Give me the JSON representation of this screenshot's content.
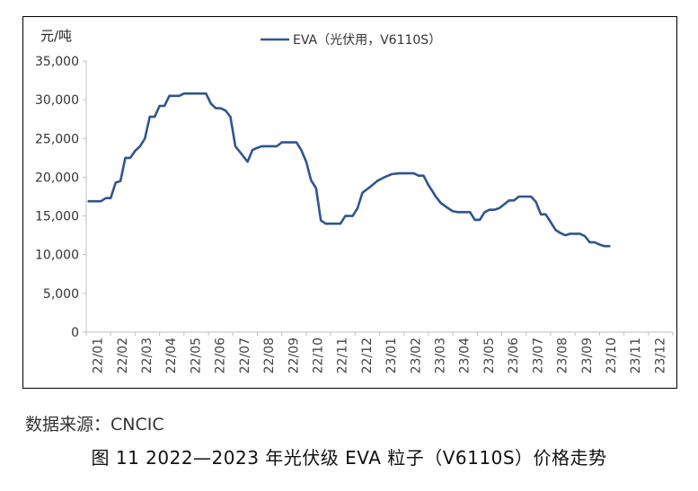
{
  "chart_data": {
    "type": "line",
    "ylabel": "元/吨",
    "ylim": [
      0,
      35000
    ],
    "yticks": [
      "0",
      "5,000",
      "10,000",
      "15,000",
      "20,000",
      "25,000",
      "30,000",
      "35,000"
    ],
    "x_ticks": [
      "22/01",
      "22/02",
      "22/03",
      "22/04",
      "22/05",
      "22/06",
      "22/07",
      "22/08",
      "22/09",
      "22/10",
      "22/11",
      "22/12",
      "23/01",
      "23/02",
      "23/03",
      "23/04",
      "23/05",
      "23/06",
      "23/07",
      "23/08",
      "23/09",
      "23/10",
      "23/11",
      "23/12"
    ],
    "legend_position": "top-center",
    "grid": false,
    "series": [
      {
        "name": "EVA（光伏用，V6110S）",
        "color": "#2e5591",
        "points": [
          [
            0.1,
            16900
          ],
          [
            0.4,
            16900
          ],
          [
            0.6,
            16900
          ],
          [
            0.8,
            17300
          ],
          [
            1.0,
            17300
          ],
          [
            1.2,
            19300
          ],
          [
            1.4,
            19500
          ],
          [
            1.6,
            22500
          ],
          [
            1.8,
            22500
          ],
          [
            2.0,
            23400
          ],
          [
            2.2,
            24000
          ],
          [
            2.4,
            25000
          ],
          [
            2.6,
            27800
          ],
          [
            2.8,
            27800
          ],
          [
            3.0,
            29200
          ],
          [
            3.2,
            29200
          ],
          [
            3.4,
            30500
          ],
          [
            3.6,
            30500
          ],
          [
            3.8,
            30500
          ],
          [
            4.0,
            30800
          ],
          [
            4.3,
            30800
          ],
          [
            4.6,
            30800
          ],
          [
            4.9,
            30800
          ],
          [
            5.1,
            29500
          ],
          [
            5.3,
            28900
          ],
          [
            5.5,
            28900
          ],
          [
            5.7,
            28600
          ],
          [
            5.9,
            27800
          ],
          [
            6.1,
            24000
          ],
          [
            6.35,
            23000
          ],
          [
            6.6,
            22000
          ],
          [
            6.8,
            23500
          ],
          [
            7.0,
            23800
          ],
          [
            7.2,
            24000
          ],
          [
            7.5,
            24000
          ],
          [
            7.8,
            24000
          ],
          [
            8.0,
            24500
          ],
          [
            8.3,
            24500
          ],
          [
            8.6,
            24500
          ],
          [
            8.8,
            23500
          ],
          [
            9.0,
            22000
          ],
          [
            9.2,
            19600
          ],
          [
            9.4,
            18600
          ],
          [
            9.6,
            14400
          ],
          [
            9.8,
            14000
          ],
          [
            10.1,
            14000
          ],
          [
            10.4,
            14000
          ],
          [
            10.6,
            15000
          ],
          [
            10.9,
            15000
          ],
          [
            11.1,
            16000
          ],
          [
            11.3,
            18000
          ],
          [
            11.6,
            18700
          ],
          [
            11.9,
            19500
          ],
          [
            12.2,
            20000
          ],
          [
            12.5,
            20400
          ],
          [
            12.8,
            20500
          ],
          [
            13.1,
            20500
          ],
          [
            13.4,
            20500
          ],
          [
            13.6,
            20200
          ],
          [
            13.8,
            20200
          ],
          [
            14.0,
            19000
          ],
          [
            14.3,
            17500
          ],
          [
            14.5,
            16700
          ],
          [
            14.8,
            16000
          ],
          [
            15.0,
            15600
          ],
          [
            15.2,
            15500
          ],
          [
            15.5,
            15500
          ],
          [
            15.7,
            15500
          ],
          [
            15.9,
            14500
          ],
          [
            16.1,
            14500
          ],
          [
            16.3,
            15500
          ],
          [
            16.5,
            15800
          ],
          [
            16.7,
            15800
          ],
          [
            16.9,
            16000
          ],
          [
            17.1,
            16500
          ],
          [
            17.3,
            17000
          ],
          [
            17.5,
            17000
          ],
          [
            17.7,
            17500
          ],
          [
            18.0,
            17500
          ],
          [
            18.2,
            17500
          ],
          [
            18.4,
            16800
          ],
          [
            18.6,
            15200
          ],
          [
            18.8,
            15200
          ],
          [
            19.0,
            14200
          ],
          [
            19.2,
            13200
          ],
          [
            19.4,
            12800
          ],
          [
            19.6,
            12500
          ],
          [
            19.8,
            12700
          ],
          [
            20.0,
            12700
          ],
          [
            20.2,
            12700
          ],
          [
            20.4,
            12400
          ],
          [
            20.6,
            11600
          ],
          [
            20.8,
            11600
          ],
          [
            21.0,
            11300
          ],
          [
            21.2,
            11100
          ],
          [
            21.4,
            11100
          ]
        ]
      }
    ]
  },
  "source": "数据来源：CNCIC",
  "caption": "图 11  2022—2023 年光伏级 EVA 粒子（V6110S）价格走势"
}
